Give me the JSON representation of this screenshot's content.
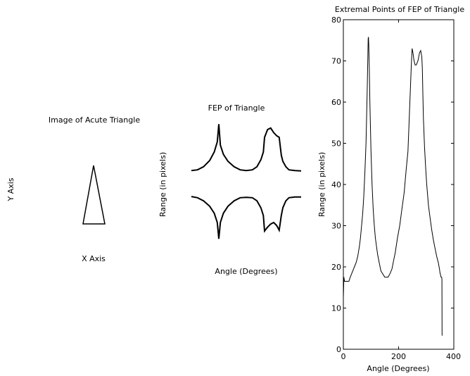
{
  "chart_data": [
    {
      "type": "image",
      "title": "Image of Acute Triangle",
      "xlabel": "X Axis",
      "ylabel": "Y Axis",
      "shape": "acute-triangle"
    },
    {
      "type": "line",
      "title": "FEP of Triangle",
      "xlabel": "Angle (Degrees)",
      "ylabel": "Range (in pixels)",
      "axes_visible": false,
      "series": [
        {
          "x": [
            0,
            20,
            40,
            60,
            75,
            85,
            90,
            95,
            105,
            120,
            140,
            160,
            180,
            200,
            215,
            228,
            236,
            240,
            250,
            260,
            270,
            280,
            288,
            295,
            300,
            310,
            320,
            340,
            360
          ],
          "y": [
            -16.5,
            -18,
            -22,
            -29,
            -38,
            -50,
            -71,
            -50,
            -38,
            -29,
            -22,
            -18,
            -17.5,
            -18,
            -22,
            -31,
            -41,
            -61,
            -56,
            -52,
            -50,
            -54,
            -60,
            -41,
            -31,
            -22,
            -18,
            -17,
            -17
          ]
        },
        {
          "x": [
            0,
            20,
            40,
            60,
            75,
            85,
            90,
            95,
            105,
            120,
            140,
            160,
            180,
            200,
            215,
            228,
            236,
            240,
            250,
            260,
            270,
            280,
            288,
            295,
            300,
            310,
            320,
            340,
            360
          ],
          "y": [
            17,
            18,
            22,
            30,
            41,
            54,
            77,
            50,
            38,
            29,
            22,
            18,
            17,
            18,
            22,
            31,
            41,
            60,
            70,
            72,
            66,
            62,
            60,
            37,
            29,
            22,
            18,
            17,
            16.5
          ]
        }
      ]
    },
    {
      "type": "line",
      "title": "Extremal Points of FEP of Triangle",
      "xlabel": "Angle (Degrees)",
      "ylabel": "Range (in pixels)",
      "xlim": [
        0,
        400
      ],
      "ylim": [
        0,
        80
      ],
      "xticks": [
        "0",
        "200",
        "400"
      ],
      "yticks": [
        "0",
        "10",
        "20",
        "30",
        "40",
        "50",
        "60",
        "70",
        "80"
      ],
      "series": [
        {
          "x": [
            0,
            2,
            4,
            20,
            24,
            28,
            34,
            40,
            46,
            52,
            58,
            62,
            66,
            70,
            74,
            78,
            82,
            86,
            89,
            90,
            91,
            92,
            94,
            96,
            100,
            104,
            108,
            112,
            116,
            120,
            124,
            130,
            136,
            150,
            162,
            170,
            176,
            182,
            188,
            196,
            204,
            212,
            220,
            228,
            234,
            238,
            242,
            246,
            249,
            252,
            256,
            260,
            264,
            270,
            276,
            280,
            284,
            286,
            288,
            290,
            294,
            298,
            302,
            308,
            314,
            320,
            326,
            332,
            338,
            344,
            348,
            350,
            352,
            354,
            356,
            357,
            357.5,
            358
          ],
          "y": [
            12.5,
            17.5,
            16.5,
            16.5,
            17.3,
            18,
            19,
            20,
            21,
            22.5,
            25,
            27,
            30,
            33,
            37,
            43,
            50,
            62,
            72,
            75.5,
            75.8,
            74,
            68,
            60,
            48,
            40,
            34,
            30,
            27,
            25,
            23,
            21,
            19,
            17.5,
            17.5,
            18.5,
            19.5,
            21.5,
            23.5,
            27,
            30,
            34,
            38,
            44,
            48,
            55,
            62,
            69,
            73,
            72,
            70,
            69,
            69,
            70,
            72,
            72.5,
            71,
            68,
            62,
            56,
            49,
            44,
            40,
            35,
            32,
            29,
            26.5,
            24.5,
            22.5,
            21,
            19.5,
            18.5,
            18,
            17.5,
            17.5,
            17,
            3.5,
            3.3
          ]
        }
      ]
    }
  ]
}
